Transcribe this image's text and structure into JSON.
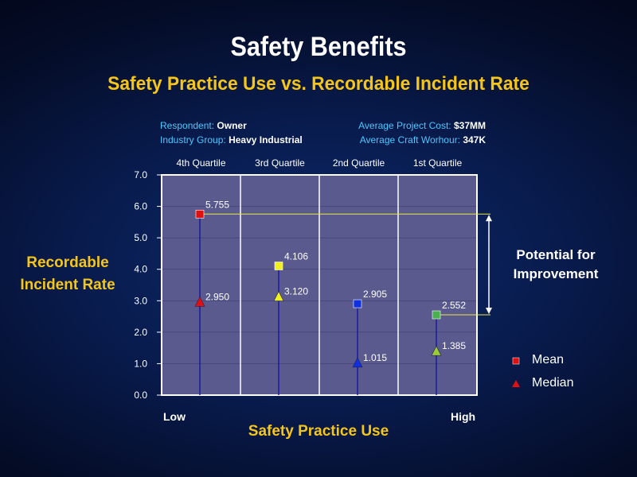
{
  "title": "Safety Benefits",
  "subtitle": "Safety Practice Use vs. Recordable Incident Rate",
  "info": {
    "respondent_label": "Respondent:",
    "respondent_value": "Owner",
    "industry_label": "Industry Group:",
    "industry_value": "Heavy Industrial",
    "cost_label": "Average Project Cost:",
    "cost_value": "$37MM",
    "workhour_label": "Average Craft Worhour:",
    "workhour_value": "347K"
  },
  "ylabel_line1": "Recordable",
  "ylabel_line2": "Incident Rate",
  "xlabel": "Safety Practice Use",
  "x_low": "Low",
  "x_high": "High",
  "annotation_line1": "Potential for",
  "annotation_line2": "Improvement",
  "legend": {
    "mean": "Mean",
    "median": "Median"
  },
  "colors": {
    "plot_bg": "#5a5a8e",
    "grid": "#ffffff",
    "title": "#ffffff",
    "accent": "#f5c518",
    "info": "#4ec7ff",
    "stem": "#1a1aa0",
    "ref_line": "#e8e840"
  },
  "chart_data": {
    "type": "scatter",
    "categories": [
      "4th Quartile",
      "3rd Quartile",
      "2nd Quartile",
      "1st Quartile"
    ],
    "ylim": [
      0,
      7
    ],
    "yticks": [
      "0.0",
      "1.0",
      "2.0",
      "3.0",
      "4.0",
      "5.0",
      "6.0",
      "7.0"
    ],
    "grid": true,
    "series": [
      {
        "name": "Mean",
        "marker": "square",
        "values": [
          5.755,
          4.106,
          2.905,
          2.552
        ],
        "labels": [
          "5.755",
          "4.106",
          "2.905",
          "2.552"
        ]
      },
      {
        "name": "Median",
        "marker": "triangle",
        "values": [
          2.95,
          3.12,
          1.015,
          1.385
        ],
        "labels": [
          "2.950",
          "3.120",
          "1.015",
          "1.385"
        ]
      }
    ],
    "point_colors": [
      "#e01010",
      "#f0f020",
      "#1030e0",
      "#4caf50"
    ],
    "median_colors": [
      "#e01010",
      "#f0f020",
      "#1030e0",
      "#9acd32"
    ]
  }
}
